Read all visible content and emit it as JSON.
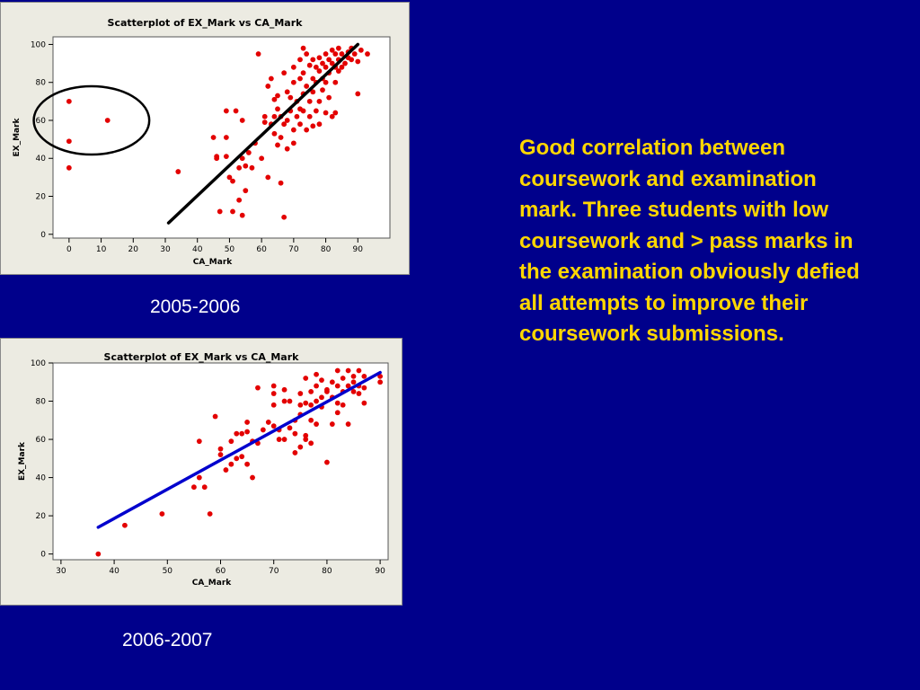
{
  "chart_data": [
    {
      "type": "scatter",
      "title": "Scatterplot of EX_Mark vs CA_Mark",
      "xlabel": "CA_Mark",
      "ylabel": "EX_Mark",
      "xlim": [
        -5,
        100
      ],
      "ylim": [
        -2,
        104
      ],
      "xticks": [
        0,
        10,
        20,
        30,
        40,
        50,
        60,
        70,
        80,
        90
      ],
      "yticks": [
        0,
        20,
        40,
        60,
        80,
        100
      ],
      "grid": false,
      "points_color": "#e30000",
      "trend_line": {
        "x": [
          31,
          90
        ],
        "y": [
          6,
          100
        ],
        "color": "#000000"
      },
      "highlight_circle": {
        "cx": 7,
        "cy": 60,
        "r": 18,
        "color": "#000000"
      },
      "points": [
        [
          0,
          70
        ],
        [
          0,
          49
        ],
        [
          0,
          35
        ],
        [
          12,
          60
        ],
        [
          34,
          33
        ],
        [
          45,
          51
        ],
        [
          46,
          41
        ],
        [
          46,
          40
        ],
        [
          47,
          12
        ],
        [
          49,
          51
        ],
        [
          49,
          41
        ],
        [
          49,
          65
        ],
        [
          50,
          30
        ],
        [
          51,
          28
        ],
        [
          51,
          12
        ],
        [
          52,
          65
        ],
        [
          53,
          35
        ],
        [
          53,
          18
        ],
        [
          54,
          40
        ],
        [
          54,
          10
        ],
        [
          54,
          60
        ],
        [
          55,
          23
        ],
        [
          55,
          36
        ],
        [
          56,
          43
        ],
        [
          57,
          35
        ],
        [
          58,
          48
        ],
        [
          59,
          95
        ],
        [
          60,
          40
        ],
        [
          61,
          59
        ],
        [
          61,
          62
        ],
        [
          62,
          78
        ],
        [
          62,
          30
        ],
        [
          63,
          58
        ],
        [
          63,
          82
        ],
        [
          64,
          71
        ],
        [
          64,
          62
        ],
        [
          64,
          53
        ],
        [
          65,
          73
        ],
        [
          65,
          66
        ],
        [
          65,
          47
        ],
        [
          66,
          51
        ],
        [
          66,
          27
        ],
        [
          66,
          62
        ],
        [
          67,
          9
        ],
        [
          67,
          85
        ],
        [
          67,
          58
        ],
        [
          68,
          75
        ],
        [
          68,
          60
        ],
        [
          68,
          45
        ],
        [
          69,
          72
        ],
        [
          69,
          65
        ],
        [
          70,
          88
        ],
        [
          70,
          80
        ],
        [
          70,
          55
        ],
        [
          70,
          48
        ],
        [
          71,
          70
        ],
        [
          71,
          62
        ],
        [
          72,
          92
        ],
        [
          72,
          82
        ],
        [
          72,
          66
        ],
        [
          72,
          58
        ],
        [
          73,
          98
        ],
        [
          73,
          85
        ],
        [
          73,
          74
        ],
        [
          73,
          65
        ],
        [
          74,
          95
        ],
        [
          74,
          78
        ],
        [
          74,
          55
        ],
        [
          75,
          89
        ],
        [
          75,
          70
        ],
        [
          75,
          62
        ],
        [
          76,
          92
        ],
        [
          76,
          82
        ],
        [
          76,
          75
        ],
        [
          76,
          57
        ],
        [
          77,
          88
        ],
        [
          77,
          80
        ],
        [
          77,
          65
        ],
        [
          78,
          93
        ],
        [
          78,
          86
        ],
        [
          78,
          70
        ],
        [
          78,
          58
        ],
        [
          79,
          90
        ],
        [
          79,
          82
        ],
        [
          79,
          76
        ],
        [
          80,
          95
        ],
        [
          80,
          88
        ],
        [
          80,
          80
        ],
        [
          80,
          64
        ],
        [
          81,
          92
        ],
        [
          81,
          85
        ],
        [
          81,
          72
        ],
        [
          82,
          97
        ],
        [
          82,
          90
        ],
        [
          82,
          62
        ],
        [
          83,
          95
        ],
        [
          83,
          88
        ],
        [
          83,
          80
        ],
        [
          83,
          64
        ],
        [
          84,
          98
        ],
        [
          84,
          92
        ],
        [
          84,
          86
        ],
        [
          85,
          95
        ],
        [
          85,
          88
        ],
        [
          86,
          90
        ],
        [
          87,
          96
        ],
        [
          87,
          93
        ],
        [
          88,
          92
        ],
        [
          88,
          98
        ],
        [
          89,
          95
        ],
        [
          90,
          74
        ],
        [
          90,
          91
        ],
        [
          91,
          97
        ],
        [
          93,
          95
        ]
      ]
    },
    {
      "type": "scatter",
      "title": "Scatterplot of EX_Mark vs CA_Mark",
      "xlabel": "CA_Mark",
      "ylabel": "EX_Mark",
      "xlim": [
        28.5,
        91.5
      ],
      "ylim": [
        -3,
        100
      ],
      "xticks": [
        30,
        40,
        50,
        60,
        70,
        80,
        90
      ],
      "yticks": [
        0,
        20,
        40,
        60,
        80,
        100
      ],
      "grid": false,
      "points_color": "#e30000",
      "trend_line": {
        "x": [
          37,
          90
        ],
        "y": [
          14,
          95
        ],
        "color": "#0000cd"
      },
      "points": [
        [
          37,
          0
        ],
        [
          42,
          15
        ],
        [
          49,
          21
        ],
        [
          55,
          35
        ],
        [
          56,
          59
        ],
        [
          56,
          40
        ],
        [
          57,
          35
        ],
        [
          58,
          21
        ],
        [
          59,
          72
        ],
        [
          60,
          55
        ],
        [
          60,
          52
        ],
        [
          61,
          44
        ],
        [
          62,
          59
        ],
        [
          62,
          47
        ],
        [
          63,
          63
        ],
        [
          63,
          50
        ],
        [
          64,
          51
        ],
        [
          64,
          63
        ],
        [
          65,
          69
        ],
        [
          65,
          64
        ],
        [
          65,
          47
        ],
        [
          66,
          40
        ],
        [
          66,
          59
        ],
        [
          67,
          87
        ],
        [
          67,
          58
        ],
        [
          68,
          65
        ],
        [
          69,
          69
        ],
        [
          70,
          88
        ],
        [
          70,
          84
        ],
        [
          70,
          78
        ],
        [
          70,
          67
        ],
        [
          71,
          65
        ],
        [
          71,
          60
        ],
        [
          72,
          86
        ],
        [
          72,
          80
        ],
        [
          72,
          60
        ],
        [
          73,
          66
        ],
        [
          73,
          80
        ],
        [
          74,
          53
        ],
        [
          74,
          70
        ],
        [
          74,
          63
        ],
        [
          75,
          84
        ],
        [
          75,
          78
        ],
        [
          75,
          73
        ],
        [
          75,
          56
        ],
        [
          76,
          92
        ],
        [
          76,
          79
        ],
        [
          76,
          62
        ],
        [
          76,
          60
        ],
        [
          77,
          85
        ],
        [
          77,
          78
        ],
        [
          77,
          70
        ],
        [
          77,
          58
        ],
        [
          78,
          94
        ],
        [
          78,
          88
        ],
        [
          78,
          80
        ],
        [
          78,
          68
        ],
        [
          79,
          91
        ],
        [
          79,
          82
        ],
        [
          79,
          77
        ],
        [
          80,
          86
        ],
        [
          80,
          48
        ],
        [
          80,
          85
        ],
        [
          81,
          90
        ],
        [
          81,
          82
        ],
        [
          81,
          68
        ],
        [
          82,
          96
        ],
        [
          82,
          88
        ],
        [
          82,
          79
        ],
        [
          82,
          74
        ],
        [
          83,
          92
        ],
        [
          83,
          85
        ],
        [
          83,
          78
        ],
        [
          84,
          96
        ],
        [
          84,
          88
        ],
        [
          84,
          68
        ],
        [
          85,
          93
        ],
        [
          85,
          85
        ],
        [
          85,
          90
        ],
        [
          86,
          96
        ],
        [
          86,
          88
        ],
        [
          86,
          84
        ],
        [
          87,
          93
        ],
        [
          87,
          87
        ],
        [
          87,
          79
        ],
        [
          90,
          93
        ],
        [
          90,
          90
        ]
      ]
    }
  ],
  "labels": {
    "year1": "2005-2006",
    "year2": "2006-2007"
  },
  "description": "Good correlation between coursework and examination mark. Three students with low coursework and > pass marks in the examination obviously defied all attempts to improve their coursework submissions."
}
